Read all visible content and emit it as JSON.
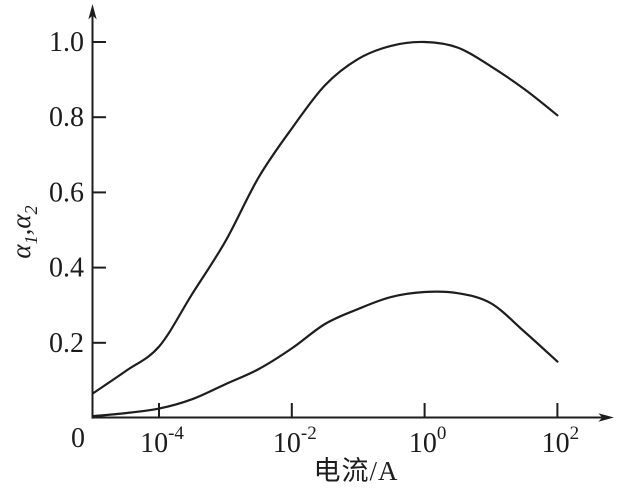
{
  "figure": {
    "background": "#ffffff",
    "ink": "#1e1e1e"
  },
  "chart_data": {
    "type": "line",
    "title": "",
    "xlabel": "电流/A",
    "ylabel": "α1,α2",
    "ylabel_rich": [
      {
        "text": "α",
        "script": "normal"
      },
      {
        "text": "1",
        "script": "sub"
      },
      {
        "text": ",",
        "script": "normal"
      },
      {
        "text": "α",
        "script": "normal"
      },
      {
        "text": "2",
        "script": "sub"
      }
    ],
    "x_scale": "log",
    "x_unit": "A",
    "xlim_log10": [
      -5,
      2.85
    ],
    "ylim": [
      0,
      1.1
    ],
    "grid": false,
    "legend": "none",
    "origin_label": "0",
    "x_ticks": [
      {
        "log10": -4,
        "base": "10",
        "exp": "-4"
      },
      {
        "log10": -2,
        "base": "10",
        "exp": "-2"
      },
      {
        "log10": 0,
        "base": "10",
        "exp": "0"
      },
      {
        "log10": 2,
        "base": "10",
        "exp": "2"
      }
    ],
    "y_ticks": [
      {
        "value": 0.2,
        "label": "0.2"
      },
      {
        "value": 0.4,
        "label": "0.4"
      },
      {
        "value": 0.6,
        "label": "0.6"
      },
      {
        "value": 0.8,
        "label": "0.8"
      },
      {
        "value": 1.0,
        "label": "1.0"
      }
    ],
    "series": [
      {
        "name": "α1",
        "x_log10": [
          -5,
          -4.5,
          -4,
          -3.5,
          -3,
          -2.5,
          -2,
          -1.5,
          -1,
          -0.5,
          0,
          0.5,
          1,
          1.5,
          2
        ],
        "values": [
          0.065,
          0.125,
          0.19,
          0.33,
          0.47,
          0.64,
          0.77,
          0.885,
          0.955,
          0.99,
          1.0,
          0.985,
          0.935,
          0.875,
          0.805
        ]
      },
      {
        "name": "α2",
        "x_log10": [
          -5,
          -4.5,
          -4,
          -3.5,
          -3,
          -2.5,
          -2,
          -1.5,
          -1,
          -0.5,
          0,
          0.5,
          1,
          1.5,
          2
        ],
        "values": [
          0.005,
          0.013,
          0.025,
          0.05,
          0.09,
          0.13,
          0.185,
          0.25,
          0.29,
          0.322,
          0.335,
          0.332,
          0.305,
          0.23,
          0.15
        ]
      }
    ]
  }
}
